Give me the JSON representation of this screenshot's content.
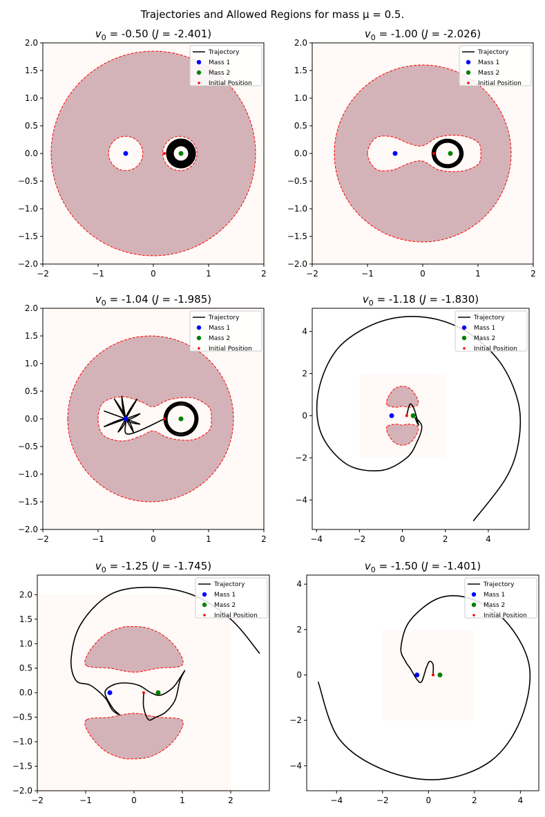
{
  "figure": {
    "title": "Trajectories and Allowed Regions for mass $\\mu = 0.5$.",
    "title_display": "Trajectories and Allowed Regions for mass μ = 0.5."
  },
  "legend_entries": [
    "Trajectory",
    "Mass 1",
    "Mass 2",
    "Initial Position"
  ],
  "colors": {
    "trajectory": "#000000",
    "mass1": "#0000ff",
    "mass2": "#008000",
    "initial": "#ff0000",
    "forbidden_fill": "#d3b3b8",
    "allowed_fill": "#fffaf7",
    "boundary": "#ff0000"
  },
  "chart_data": [
    {
      "type": "line",
      "title": "v0 = -0.50 (J = -2.401)",
      "title_parts": {
        "v0": "-0.50",
        "J": "-2.401"
      },
      "xlim": [
        -2,
        2
      ],
      "ylim": [
        -2,
        2
      ],
      "xticks": [
        -2,
        -1,
        0,
        1,
        2
      ],
      "yticks": [
        -2.0,
        -1.5,
        -1.0,
        -0.5,
        0.0,
        0.5,
        1.0,
        1.5,
        2.0
      ],
      "tick_format": {
        "x": 0,
        "y": 1
      },
      "legend": "top-right",
      "mass1": [
        -0.5,
        0
      ],
      "mass2": [
        0.5,
        0
      ],
      "initial": [
        0.2,
        0
      ],
      "region": {
        "kind": "ring",
        "outer_r": 1.85,
        "holes": [
          [
            -0.5,
            0,
            0.31
          ],
          [
            0.48,
            0,
            0.31
          ]
        ]
      },
      "trajectory": {
        "kind": "rosette",
        "center": [
          0.5,
          0
        ],
        "r0": 0.2,
        "r1": 0.06,
        "turns": 22
      },
      "series": [
        {
          "name": "Trajectory"
        },
        {
          "name": "Mass 1"
        },
        {
          "name": "Mass 2"
        },
        {
          "name": "Initial Position"
        }
      ]
    },
    {
      "type": "line",
      "title": "v0 = -1.00 (J = -2.026)",
      "title_parts": {
        "v0": "-1.00",
        "J": "-2.026"
      },
      "xlim": [
        -2,
        2
      ],
      "ylim": [
        -2,
        2
      ],
      "xticks": [
        -2,
        -1,
        0,
        1,
        2
      ],
      "yticks": [
        -2.0,
        -1.5,
        -1.0,
        -0.5,
        0.0,
        0.5,
        1.0,
        1.5,
        2.0
      ],
      "tick_format": {
        "x": 0,
        "y": 1
      },
      "legend": "top-right",
      "mass1": [
        -0.5,
        0
      ],
      "mass2": [
        0.5,
        0
      ],
      "initial": [
        0.2,
        0
      ],
      "region": {
        "kind": "ring",
        "outer_r": 1.6,
        "peanut": [
          [
            -1.0,
            0.0
          ],
          [
            -0.85,
            0.28
          ],
          [
            -0.55,
            0.3
          ],
          [
            -0.25,
            0.18
          ],
          [
            0.0,
            0.14
          ],
          [
            0.3,
            0.3
          ],
          [
            0.7,
            0.32
          ],
          [
            1.0,
            0.2
          ],
          [
            1.05,
            0.0
          ],
          [
            1.0,
            -0.2
          ],
          [
            0.7,
            -0.32
          ],
          [
            0.3,
            -0.3
          ],
          [
            0.0,
            -0.14
          ],
          [
            -0.25,
            -0.18
          ],
          [
            -0.55,
            -0.3
          ],
          [
            -0.85,
            -0.28
          ]
        ]
      },
      "trajectory": {
        "kind": "orbit",
        "center": [
          0.45,
          0
        ],
        "rx": 0.25,
        "ry": 0.23,
        "turns": 12
      },
      "series": [
        {
          "name": "Trajectory"
        },
        {
          "name": "Mass 1"
        },
        {
          "name": "Mass 2"
        },
        {
          "name": "Initial Position"
        }
      ]
    },
    {
      "type": "line",
      "title": "v0 = -1.04 (J = -1.985)",
      "title_parts": {
        "v0": "-1.04",
        "J": "-1.985"
      },
      "xlim": [
        -2,
        2
      ],
      "ylim": [
        -2,
        2
      ],
      "xticks": [
        -2,
        -1,
        0,
        1,
        2
      ],
      "yticks": [
        -2.0,
        -1.5,
        -1.0,
        -0.5,
        0.0,
        0.5,
        1.0,
        1.5,
        2.0
      ],
      "tick_format": {
        "x": 0,
        "y": 1
      },
      "legend": "top-right",
      "mass1": [
        -0.5,
        0
      ],
      "mass2": [
        0.5,
        0
      ],
      "initial": [
        0.2,
        0
      ],
      "region": {
        "kind": "ring",
        "outer_r": 1.5,
        "outer_center_x": -0.05,
        "peanut": [
          [
            -1.0,
            0.0
          ],
          [
            -0.9,
            0.3
          ],
          [
            -0.55,
            0.4
          ],
          [
            -0.2,
            0.3
          ],
          [
            0.0,
            0.22
          ],
          [
            0.3,
            0.35
          ],
          [
            0.7,
            0.38
          ],
          [
            1.0,
            0.22
          ],
          [
            1.05,
            0.0
          ],
          [
            1.0,
            -0.22
          ],
          [
            0.7,
            -0.38
          ],
          [
            0.3,
            -0.35
          ],
          [
            0.0,
            -0.22
          ],
          [
            -0.2,
            -0.3
          ],
          [
            -0.55,
            -0.4
          ],
          [
            -0.9,
            -0.3
          ]
        ]
      },
      "trajectory": {
        "kind": "mixed",
        "star_center": [
          -0.5,
          0
        ],
        "orbit_center": [
          0.5,
          0
        ]
      },
      "series": [
        {
          "name": "Trajectory"
        },
        {
          "name": "Mass 1"
        },
        {
          "name": "Mass 2"
        },
        {
          "name": "Initial Position"
        }
      ]
    },
    {
      "type": "line",
      "title": "v0 = -1.18 (J = -1.830)",
      "title_parts": {
        "v0": "-1.18",
        "J": "-1.830"
      },
      "xlim": [
        -4.2,
        5.9
      ],
      "ylim": [
        -5.4,
        5.1
      ],
      "xticks": [
        -4,
        -2,
        0,
        2,
        4
      ],
      "yticks": [
        -4,
        -2,
        0,
        2,
        4
      ],
      "tick_format": {
        "x": 0,
        "y": 0
      },
      "legend": "top-right",
      "mass1": [
        -0.5,
        0
      ],
      "mass2": [
        0.5,
        0
      ],
      "initial": [
        0.2,
        0
      ],
      "region": {
        "kind": "lunes",
        "box": [
          -2,
          2
        ],
        "upper": [
          [
            -0.7,
            0.5
          ],
          [
            -0.7,
            0.8
          ],
          [
            -0.4,
            1.25
          ],
          [
            0.0,
            1.4
          ],
          [
            0.4,
            1.25
          ],
          [
            0.7,
            0.8
          ],
          [
            0.7,
            0.5
          ],
          [
            0.3,
            0.4
          ],
          [
            0.0,
            0.45
          ],
          [
            -0.3,
            0.4
          ]
        ],
        "lower": [
          [
            -0.7,
            -0.5
          ],
          [
            -0.7,
            -0.8
          ],
          [
            -0.4,
            -1.25
          ],
          [
            0.0,
            -1.4
          ],
          [
            0.4,
            -1.25
          ],
          [
            0.7,
            -0.8
          ],
          [
            0.7,
            -0.5
          ],
          [
            0.3,
            -0.4
          ],
          [
            0.0,
            -0.45
          ],
          [
            -0.3,
            -0.4
          ]
        ]
      },
      "trajectory": {
        "kind": "spiral",
        "points": [
          [
            0.2,
            0
          ],
          [
            0.35,
            0.55
          ],
          [
            0.55,
            0.3
          ],
          [
            0.75,
            -0.45
          ],
          [
            0.6,
            -0.1
          ],
          [
            0.9,
            -0.5
          ],
          [
            0.7,
            -1.2
          ],
          [
            0.2,
            -2.0
          ],
          [
            -1.0,
            -2.6
          ],
          [
            -2.6,
            -2.3
          ],
          [
            -3.8,
            -0.8
          ],
          [
            -3.9,
            1.2
          ],
          [
            -3.0,
            3.2
          ],
          [
            -1.2,
            4.4
          ],
          [
            0.8,
            4.7
          ],
          [
            2.8,
            4.1
          ],
          [
            4.5,
            2.6
          ],
          [
            5.4,
            0.6
          ],
          [
            5.4,
            -1.3
          ],
          [
            4.8,
            -3.0
          ],
          [
            3.3,
            -5.0
          ]
        ]
      },
      "series": [
        {
          "name": "Trajectory"
        },
        {
          "name": "Mass 1"
        },
        {
          "name": "Mass 2"
        },
        {
          "name": "Initial Position"
        }
      ]
    },
    {
      "type": "line",
      "title": "v0 = -1.25 (J = -1.745)",
      "title_parts": {
        "v0": "-1.25",
        "J": "-1.745"
      },
      "xlim": [
        -2,
        2.8
      ],
      "ylim": [
        -2,
        2.4
      ],
      "xticks": [
        -2,
        -1,
        0,
        1,
        2
      ],
      "yticks": [
        -2.0,
        -1.5,
        -1.0,
        -0.5,
        0.0,
        0.5,
        1.0,
        1.5,
        2.0
      ],
      "tick_format": {
        "x": 0,
        "y": 1
      },
      "legend": "top-right",
      "mass1": [
        -0.5,
        0
      ],
      "mass2": [
        0.5,
        0
      ],
      "initial": [
        0.2,
        0
      ],
      "region": {
        "kind": "lunes",
        "box": [
          -2,
          2
        ],
        "upper": [
          [
            -0.98,
            0.55
          ],
          [
            -0.95,
            0.8
          ],
          [
            -0.65,
            1.15
          ],
          [
            -0.3,
            1.32
          ],
          [
            0.0,
            1.35
          ],
          [
            0.35,
            1.3
          ],
          [
            0.7,
            1.1
          ],
          [
            0.95,
            0.8
          ],
          [
            0.98,
            0.55
          ],
          [
            0.5,
            0.5
          ],
          [
            0.0,
            0.42
          ],
          [
            -0.5,
            0.5
          ]
        ],
        "lower": [
          [
            -0.98,
            -0.55
          ],
          [
            -0.95,
            -0.8
          ],
          [
            -0.65,
            -1.15
          ],
          [
            -0.3,
            -1.32
          ],
          [
            0.0,
            -1.35
          ],
          [
            0.35,
            -1.3
          ],
          [
            0.7,
            -1.1
          ],
          [
            0.95,
            -0.8
          ],
          [
            0.98,
            -0.55
          ],
          [
            0.5,
            -0.5
          ],
          [
            0.0,
            -0.42
          ],
          [
            -0.5,
            -0.5
          ]
        ]
      },
      "trajectory": {
        "kind": "spiral",
        "points": [
          [
            0.2,
            0
          ],
          [
            0.2,
            -0.3
          ],
          [
            0.3,
            -0.55
          ],
          [
            0.45,
            -0.5
          ],
          [
            0.65,
            -0.4
          ],
          [
            0.85,
            -0.15
          ],
          [
            0.95,
            0.25
          ],
          [
            1.05,
            0.45
          ],
          [
            0.95,
            0.3
          ],
          [
            0.8,
            0.1
          ],
          [
            0.55,
            -0.05
          ],
          [
            0.35,
            0.0
          ],
          [
            0.1,
            0.15
          ],
          [
            -0.2,
            0.2
          ],
          [
            -0.45,
            0.15
          ],
          [
            -0.6,
            0.0
          ],
          [
            -0.45,
            -0.3
          ],
          [
            -0.3,
            -0.45
          ],
          [
            -0.45,
            -0.35
          ],
          [
            -0.6,
            -0.1
          ],
          [
            -0.9,
            0.15
          ],
          [
            -1.2,
            0.25
          ],
          [
            -1.3,
            0.7
          ],
          [
            -1.1,
            1.4
          ],
          [
            -0.5,
            2.0
          ],
          [
            0.3,
            2.15
          ],
          [
            1.2,
            2.0
          ],
          [
            2.0,
            1.5
          ],
          [
            2.6,
            0.8
          ]
        ]
      },
      "series": [
        {
          "name": "Trajectory"
        },
        {
          "name": "Mass 1"
        },
        {
          "name": "Mass 2"
        },
        {
          "name": "Initial Position"
        }
      ]
    },
    {
      "type": "line",
      "title": "v0 = -1.50 (J = -1.401)",
      "title_parts": {
        "v0": "-1.50",
        "J": "-1.401"
      },
      "xlim": [
        -5.3,
        4.8
      ],
      "ylim": [
        -5.1,
        4.4
      ],
      "xticks": [
        -4,
        -2,
        0,
        2,
        4
      ],
      "yticks": [
        -4,
        -2,
        0,
        2,
        4
      ],
      "tick_format": {
        "x": 0,
        "y": 0
      },
      "legend": "top-right",
      "mass1": [
        -0.5,
        0
      ],
      "mass2": [
        0.5,
        0
      ],
      "initial": [
        0.2,
        0
      ],
      "region": {
        "kind": "box",
        "box": [
          -2,
          2
        ]
      },
      "trajectory": {
        "kind": "spiral",
        "points": [
          [
            0.2,
            0
          ],
          [
            0.2,
            0.45
          ],
          [
            0.05,
            0.6
          ],
          [
            -0.1,
            0.3
          ],
          [
            -0.3,
            -0.3
          ],
          [
            -0.5,
            -0.2
          ],
          [
            -0.8,
            0.3
          ],
          [
            -1.0,
            0.6
          ],
          [
            -1.2,
            1.2
          ],
          [
            -0.8,
            2.4
          ],
          [
            0.5,
            3.4
          ],
          [
            2.0,
            3.3
          ],
          [
            3.5,
            2.2
          ],
          [
            4.4,
            0.3
          ],
          [
            4.0,
            -2.0
          ],
          [
            2.7,
            -3.8
          ],
          [
            0.5,
            -4.6
          ],
          [
            -1.9,
            -4.2
          ],
          [
            -3.9,
            -2.8
          ],
          [
            -4.8,
            -0.3
          ]
        ]
      },
      "series": [
        {
          "name": "Trajectory"
        },
        {
          "name": "Mass 1"
        },
        {
          "name": "Mass 2"
        },
        {
          "name": "Initial Position"
        }
      ]
    }
  ]
}
